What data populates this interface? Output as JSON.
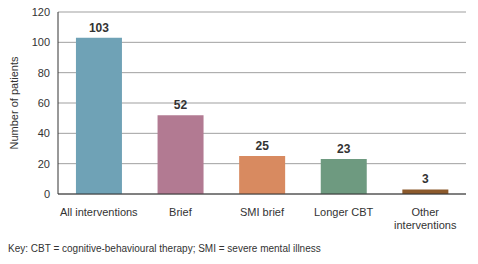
{
  "chart_data": {
    "type": "bar",
    "categories": [
      "All interventions",
      "Brief",
      "SMI brief",
      "Longer CBT",
      "Other interventions"
    ],
    "values": [
      103,
      52,
      25,
      23,
      3
    ],
    "colors": [
      "#6fa2b6",
      "#b27a92",
      "#d88a60",
      "#6e9a80",
      "#8c5a2c"
    ],
    "y_label": "Number of patients",
    "ylim": [
      0,
      120
    ],
    "yticks": [
      0,
      20,
      40,
      60,
      80,
      100,
      120
    ],
    "grid": true,
    "data_labels": true,
    "annotations": [
      "Key: CBT = cognitive-behavioural therapy; SMI = severe mental illness"
    ]
  }
}
